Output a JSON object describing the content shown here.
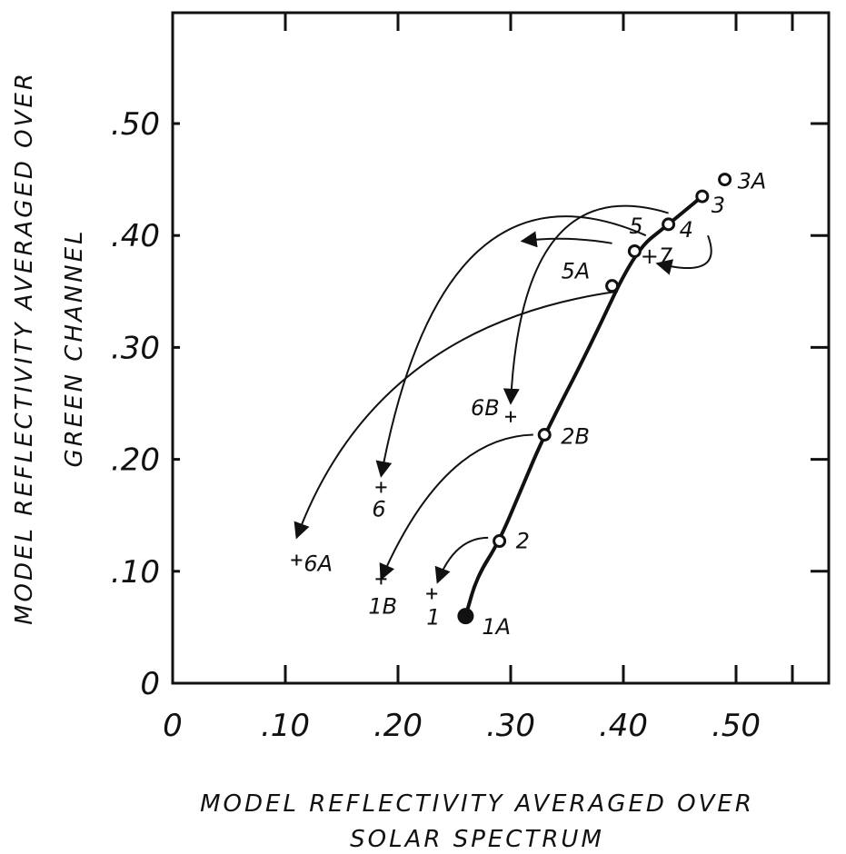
{
  "chart_data": {
    "type": "scatter",
    "xlabel_lines": [
      "MODEL  REFLECTIVITY  AVERAGED OVER",
      "SOLAR   SPECTRUM"
    ],
    "ylabel_lines": [
      "MODEL  REFLECTIVITY  AVERAGED  OVER",
      "GREEN  CHANNEL"
    ],
    "xlim": [
      0,
      0.6
    ],
    "ylim": [
      0,
      0.6
    ],
    "x_ticks": [
      0,
      0.1,
      0.2,
      0.3,
      0.4,
      0.5
    ],
    "x_tick_labels": [
      "0",
      ".10",
      ".20",
      ".30",
      ".40",
      ".50"
    ],
    "y_ticks": [
      0,
      0.1,
      0.2,
      0.3,
      0.4,
      0.5
    ],
    "y_tick_labels": [
      "0",
      ".10",
      ".20",
      ".30",
      ".40",
      ".50"
    ],
    "grid": false,
    "points": [
      {
        "label": "1A",
        "x": 0.26,
        "y": 0.06,
        "marker": "filled"
      },
      {
        "label": "2",
        "x": 0.29,
        "y": 0.127,
        "marker": "open"
      },
      {
        "label": "2B",
        "x": 0.33,
        "y": 0.222,
        "marker": "open"
      },
      {
        "label": "7",
        "x": 0.41,
        "y": 0.386,
        "marker": "open"
      },
      {
        "label": "4",
        "x": 0.44,
        "y": 0.41,
        "marker": "open"
      },
      {
        "label": "3",
        "x": 0.47,
        "y": 0.435,
        "marker": "open"
      },
      {
        "label": "3A",
        "x": 0.49,
        "y": 0.45,
        "marker": "open"
      },
      {
        "label": "5A",
        "x": 0.39,
        "y": 0.355,
        "marker": "open"
      },
      {
        "label": "1",
        "x": 0.23,
        "y": 0.08,
        "marker": "plus"
      },
      {
        "label": "1B",
        "x": 0.185,
        "y": 0.093,
        "marker": "plus"
      },
      {
        "label": "6",
        "x": 0.185,
        "y": 0.175,
        "marker": "plus"
      },
      {
        "label": "6A",
        "x": 0.11,
        "y": 0.11,
        "marker": "plus"
      },
      {
        "label": "6B",
        "x": 0.3,
        "y": 0.238,
        "marker": "plus"
      }
    ],
    "extra_labels": [
      {
        "text": "5",
        "x": 0.41,
        "y": 0.41
      },
      {
        "text": "+7",
        "x": 0.42,
        "y": 0.383
      }
    ],
    "main_curve": [
      [
        0.26,
        0.06
      ],
      [
        0.27,
        0.095
      ],
      [
        0.29,
        0.127
      ],
      [
        0.31,
        0.175
      ],
      [
        0.33,
        0.222
      ],
      [
        0.37,
        0.3
      ],
      [
        0.41,
        0.386
      ],
      [
        0.44,
        0.41
      ],
      [
        0.47,
        0.435
      ]
    ],
    "arrows": [
      {
        "from": [
          0.28,
          0.13
        ],
        "to": [
          0.235,
          0.09
        ],
        "via": [
          0.25,
          0.13
        ]
      },
      {
        "from": [
          0.32,
          0.222
        ],
        "to": [
          0.185,
          0.093
        ],
        "via": [
          0.24,
          0.22
        ]
      },
      {
        "from": [
          0.395,
          0.35
        ],
        "to": [
          0.11,
          0.13
        ],
        "via": [
          0.18,
          0.32
        ]
      },
      {
        "from": [
          0.42,
          0.4
        ],
        "to": [
          0.185,
          0.185
        ],
        "via": [
          0.24,
          0.48
        ]
      },
      {
        "from": [
          0.44,
          0.42
        ],
        "to": [
          0.3,
          0.25
        ],
        "via": [
          0.31,
          0.46
        ]
      },
      {
        "from": [
          0.39,
          0.393
        ],
        "to": [
          0.31,
          0.395
        ],
        "via": [
          0.35,
          0.4
        ]
      },
      {
        "from": [
          0.475,
          0.4
        ],
        "to": [
          0.43,
          0.375
        ],
        "via": [
          0.49,
          0.36
        ]
      }
    ]
  }
}
